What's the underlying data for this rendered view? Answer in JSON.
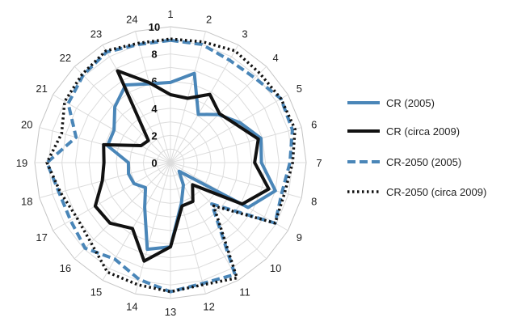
{
  "chart_data": {
    "type": "radar",
    "categories": [
      "1",
      "2",
      "3",
      "4",
      "5",
      "6",
      "7",
      "8",
      "9",
      "10",
      "11",
      "12",
      "13",
      "14",
      "15",
      "16",
      "17",
      "18",
      "19",
      "20",
      "21",
      "22",
      "23",
      "24"
    ],
    "rlim": [
      0,
      10
    ],
    "ticks": [
      "0",
      "2",
      "4",
      "6",
      "8",
      "10"
    ],
    "grid": true,
    "legend_position": "right",
    "series": [
      {
        "name": "CR (2005)",
        "color": "#4a86b8",
        "style": "solid",
        "values": [
          5.9,
          6.8,
          4.1,
          5.0,
          5.9,
          6.9,
          6.7,
          8.0,
          6.6,
          0.9,
          1.9,
          3.1,
          6.2,
          6.6,
          3.8,
          2.6,
          3.1,
          3.2,
          3.1,
          4.8,
          4.8,
          5.8,
          6.6,
          6.0
        ]
      },
      {
        "name": "CR (circa 2009)",
        "color": "#111111",
        "style": "solid",
        "values": [
          5.0,
          4.9,
          5.8,
          5.1,
          5.6,
          6.7,
          6.2,
          7.5,
          6.1,
          2.3,
          3.3,
          3.3,
          6.2,
          7.5,
          5.6,
          6.3,
          6.4,
          5.2,
          4.9,
          5.1,
          2.5,
          2.3,
          7.8,
          6.1
        ]
      },
      {
        "name": "CR-2050 (2005)",
        "color": "#4a86b8",
        "style": "dashed",
        "values": [
          9.0,
          9.0,
          8.7,
          8.8,
          9.4,
          9.3,
          8.8,
          8.5,
          8.9,
          4.3,
          9.5,
          9.2,
          9.5,
          8.9,
          8.2,
          8.9,
          8.5,
          8.5,
          9.1,
          7.2,
          8.7,
          9.1,
          9.4,
          9.0
        ]
      },
      {
        "name": "CR-2050 (circa 2009)",
        "color": "#111111",
        "style": "dotted",
        "values": [
          9.1,
          9.2,
          9.5,
          9.3,
          9.4,
          9.5,
          9.0,
          8.7,
          8.9,
          4.5,
          9.8,
          9.3,
          9.5,
          9.3,
          9.3,
          8.3,
          8.0,
          8.4,
          9.1,
          8.3,
          9.0,
          9.2,
          9.5,
          9.1
        ]
      }
    ]
  }
}
